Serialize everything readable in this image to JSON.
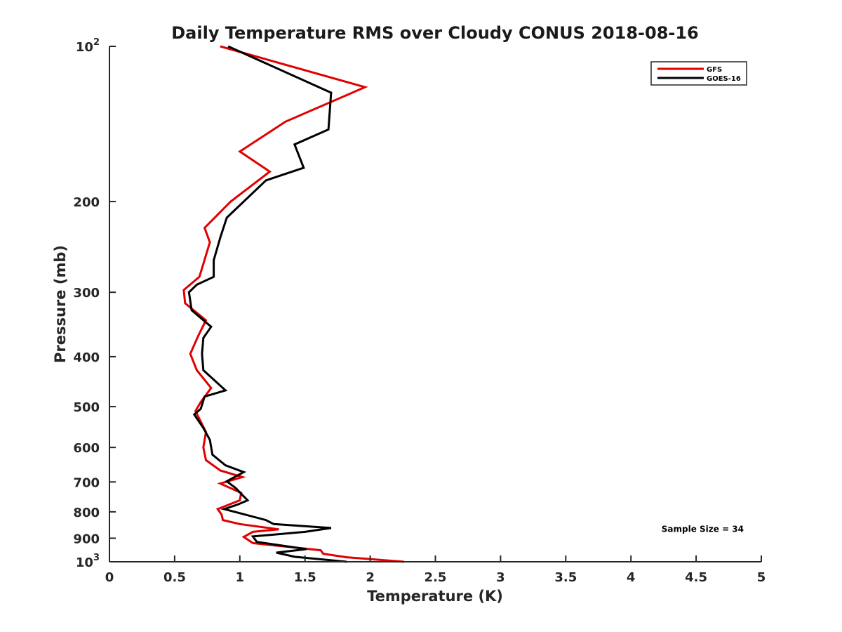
{
  "chart_data": {
    "type": "line",
    "title": "Daily Temperature RMS over Cloudy CONUS 2018-08-16",
    "xlabel": "Temperature (K)",
    "ylabel": "Pressure (mb)",
    "xlim": [
      0,
      5
    ],
    "ylim": [
      100,
      1000
    ],
    "y_scale": "log",
    "y_reversed": true,
    "grid": false,
    "legend_position": "top-right",
    "x_ticks": [
      "0",
      "0.5",
      "1",
      "1.5",
      "2",
      "2.5",
      "3",
      "3.5",
      "4",
      "4.5",
      "5"
    ],
    "y_ticks": [
      {
        "value": 100,
        "base": "10",
        "exp": "2"
      },
      {
        "value": 200,
        "label": "200"
      },
      {
        "value": 300,
        "label": "300"
      },
      {
        "value": 400,
        "label": "400"
      },
      {
        "value": 500,
        "label": "500"
      },
      {
        "value": 600,
        "label": "600"
      },
      {
        "value": 700,
        "label": "700"
      },
      {
        "value": 800,
        "label": "800"
      },
      {
        "value": 900,
        "label": "900"
      },
      {
        "value": 1000,
        "base": "10",
        "exp": "3"
      }
    ],
    "series": [
      {
        "name": "GFS",
        "color": "#e00000",
        "points": [
          [
            0.85,
            100
          ],
          [
            1.96,
            120
          ],
          [
            1.35,
            140
          ],
          [
            1.0,
            160
          ],
          [
            1.23,
            175
          ],
          [
            0.93,
            200
          ],
          [
            0.73,
            225
          ],
          [
            0.77,
            240
          ],
          [
            0.69,
            280
          ],
          [
            0.57,
            297
          ],
          [
            0.58,
            315
          ],
          [
            0.74,
            340
          ],
          [
            0.68,
            365
          ],
          [
            0.62,
            395
          ],
          [
            0.67,
            425
          ],
          [
            0.78,
            460
          ],
          [
            0.7,
            490
          ],
          [
            0.66,
            510
          ],
          [
            0.74,
            560
          ],
          [
            0.72,
            600
          ],
          [
            0.74,
            635
          ],
          [
            0.85,
            665
          ],
          [
            1.02,
            685
          ],
          [
            0.85,
            705
          ],
          [
            1.01,
            735
          ],
          [
            1.0,
            760
          ],
          [
            0.83,
            790
          ],
          [
            0.86,
            810
          ],
          [
            0.87,
            830
          ],
          [
            1.0,
            845
          ],
          [
            1.3,
            865
          ],
          [
            1.1,
            875
          ],
          [
            1.03,
            895
          ],
          [
            1.1,
            920
          ],
          [
            1.62,
            950
          ],
          [
            1.64,
            965
          ],
          [
            1.82,
            980
          ],
          [
            2.26,
            1000
          ]
        ]
      },
      {
        "name": "GOES-16",
        "color": "#000000",
        "points": [
          [
            0.91,
            100
          ],
          [
            1.7,
            123
          ],
          [
            1.68,
            145
          ],
          [
            1.42,
            155
          ],
          [
            1.49,
            172
          ],
          [
            1.2,
            182
          ],
          [
            0.9,
            215
          ],
          [
            0.85,
            235
          ],
          [
            0.8,
            260
          ],
          [
            0.8,
            280
          ],
          [
            0.67,
            290
          ],
          [
            0.61,
            300
          ],
          [
            0.63,
            325
          ],
          [
            0.78,
            350
          ],
          [
            0.72,
            368
          ],
          [
            0.71,
            395
          ],
          [
            0.72,
            425
          ],
          [
            0.89,
            465
          ],
          [
            0.73,
            478
          ],
          [
            0.7,
            505
          ],
          [
            0.65,
            518
          ],
          [
            0.72,
            550
          ],
          [
            0.77,
            580
          ],
          [
            0.79,
            620
          ],
          [
            0.89,
            650
          ],
          [
            1.03,
            670
          ],
          [
            0.9,
            698
          ],
          [
            0.97,
            720
          ],
          [
            1.01,
            738
          ],
          [
            1.06,
            760
          ],
          [
            0.98,
            775
          ],
          [
            0.88,
            790
          ],
          [
            1.2,
            830
          ],
          [
            1.26,
            845
          ],
          [
            1.7,
            860
          ],
          [
            1.5,
            875
          ],
          [
            1.1,
            893
          ],
          [
            1.13,
            915
          ],
          [
            1.51,
            945
          ],
          [
            1.28,
            960
          ],
          [
            1.42,
            978
          ],
          [
            1.82,
            1000
          ]
        ]
      }
    ],
    "annotations": [
      {
        "text": "Sample Size = 34",
        "x": 4.55,
        "y": 875
      }
    ]
  }
}
